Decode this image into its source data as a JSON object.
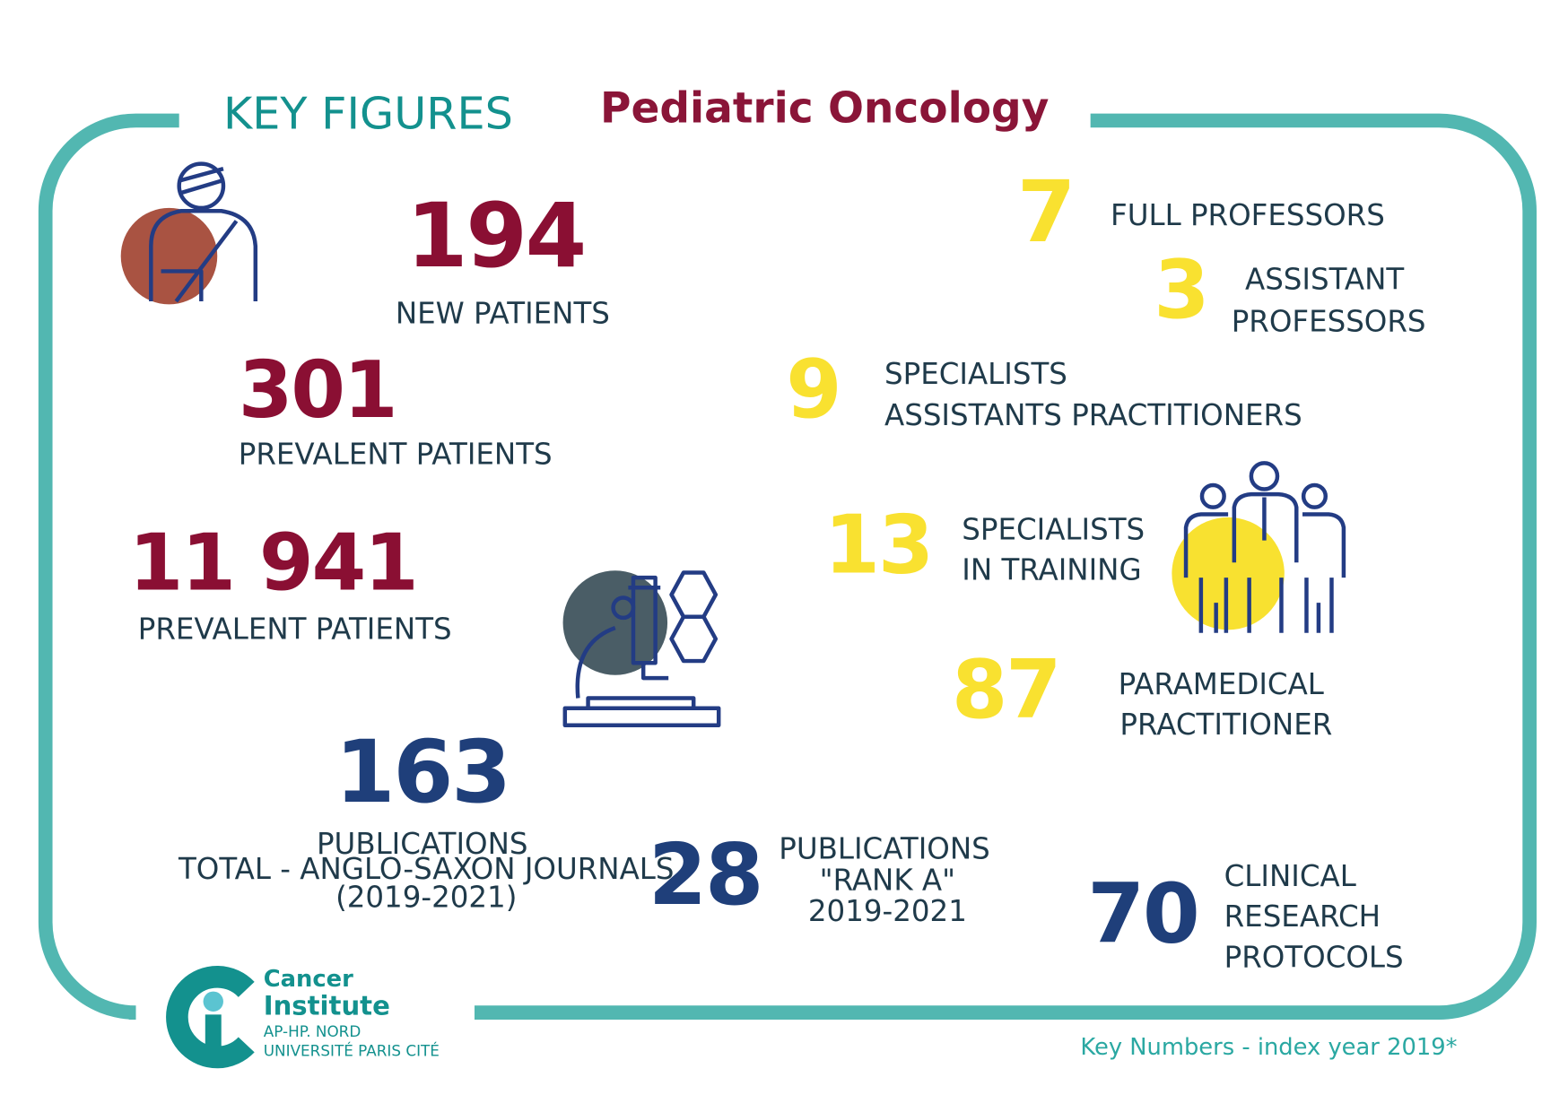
{
  "header": {
    "title": "KEY FIGURES",
    "subtitle": "Pediatric Oncology"
  },
  "patients": [
    {
      "value": 194,
      "lines": [
        "NEW PATIENTS"
      ]
    },
    {
      "value": 301,
      "lines": [
        "PREVALENT PATIENTS"
      ]
    },
    {
      "value": "11 941",
      "lines": [
        "PREVALENT PATIENTS"
      ]
    }
  ],
  "publications": [
    {
      "value": 163,
      "lines": [
        "PUBLICATIONS",
        "TOTAL - ANGLO-SAXON JOURNALS",
        "(2019-2021)"
      ]
    },
    {
      "value": 28,
      "lines": [
        "PUBLICATIONS",
        "\"RANK A\"",
        "2019-2021"
      ]
    },
    {
      "value": 70,
      "lines": [
        "CLINICAL",
        "RESEARCH",
        "PROTOCOLS"
      ]
    }
  ],
  "staff": [
    {
      "value": 7,
      "lines": [
        "FULL PROFESSORS"
      ]
    },
    {
      "value": 3,
      "lines": [
        "ASSISTANT",
        "PROFESSORS"
      ]
    },
    {
      "value": 9,
      "lines": [
        "SPECIALISTS",
        "ASSISTANTS PRACTITIONERS"
      ]
    },
    {
      "value": 13,
      "lines": [
        "SPECIALISTS",
        "IN TRAINING"
      ]
    },
    {
      "value": 87,
      "lines": [
        "PARAMEDICAL",
        "PRACTITIONER"
      ]
    }
  ],
  "logo": {
    "name1": "Cancer",
    "name2": "Institute",
    "line1": "AP-HP. NORD",
    "line2": "UNIVERSITÉ PARIS CITÉ"
  },
  "footer": "Key Numbers - index year 2019*"
}
